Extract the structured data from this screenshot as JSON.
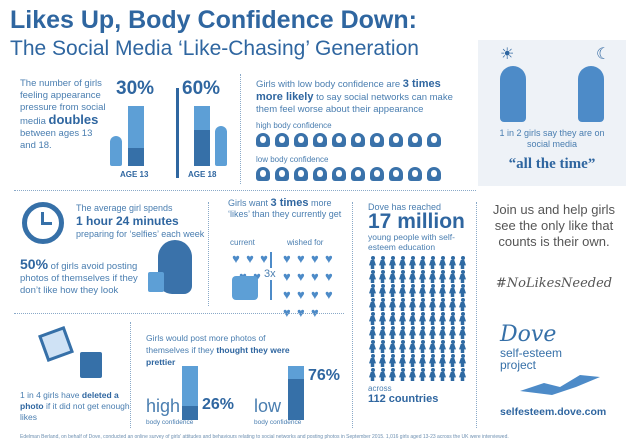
{
  "title": {
    "line1": "Likes Up, Body Confidence Down:",
    "line2": "The Social Media ‘Like-Chasing’ Generation"
  },
  "pressure": {
    "text1": "The number of girls feeling appearance pressure from social media",
    "bold": "doubles",
    "text2": "between ages 13 and 18.",
    "bars": [
      {
        "pct": "30%",
        "value": 30,
        "label": "AGE 13"
      },
      {
        "pct": "60%",
        "value": 60,
        "label": "AGE 18"
      }
    ]
  },
  "confidence": {
    "text1": "Girls with low body confidence are",
    "bold": "3 times more likely",
    "text2": "to say social networks can make them feel worse about their appearance",
    "high_label": "high body confidence",
    "low_label": "low body confidence",
    "face_count": 10
  },
  "allthetime": {
    "text": "1 in 2 girls say they are on social media",
    "bold": "“all the time”",
    "sun_icon": "☀",
    "moon_icon": "☾"
  },
  "selfies": {
    "text1": "The average girl spends",
    "bold": "1 hour 24 minutes",
    "text2": "preparing for ‘selfies’ each week",
    "pct": "50%",
    "text3": "of girls avoid posting photos of themselves if they don’t like how they look"
  },
  "likes": {
    "text1": "Girls want",
    "bold": "3 times",
    "text2": "more ‘likes’ than they currently get",
    "current_label": "current",
    "wished_label": "wished for",
    "multiplier": "3x",
    "current_hearts": 5,
    "wished_hearts": 15
  },
  "reach": {
    "text1": "Dove has reached",
    "big": "17 million",
    "text2": "young people with self-esteem education",
    "across": "across",
    "countries": "112 countries",
    "people_icons": 90
  },
  "join": {
    "text": "Join us and help girls see the only like that counts is their own.",
    "hashtag": "#NoLikesNeeded"
  },
  "deleted": {
    "text1": "1 in 4 girls have",
    "bold": "deleted a photo",
    "text2": "if it did not get enough likes"
  },
  "prettier": {
    "text1": "Girls would post more photos of themselves if they",
    "bold": "thought they were prettier",
    "groups": [
      {
        "word": "high",
        "sub": "body confidence",
        "pct": "26%",
        "value": 26
      },
      {
        "word": "low",
        "sub": "body confidence",
        "pct": "76%",
        "value": 76
      }
    ]
  },
  "brand": {
    "name": "Dove",
    "sub": "self-esteem project",
    "url": "selfesteem.dove.com"
  },
  "footer": "Edelman Berland, on behalf of Dove, conducted an online survey of girls' attitudes and behaviours relating to social networks and posting photos in September 2015. 1,016 girls aged 13-23 across the UK were interviewed.",
  "colors": {
    "dark": "#2f66a0",
    "light": "#5d9fd6"
  }
}
